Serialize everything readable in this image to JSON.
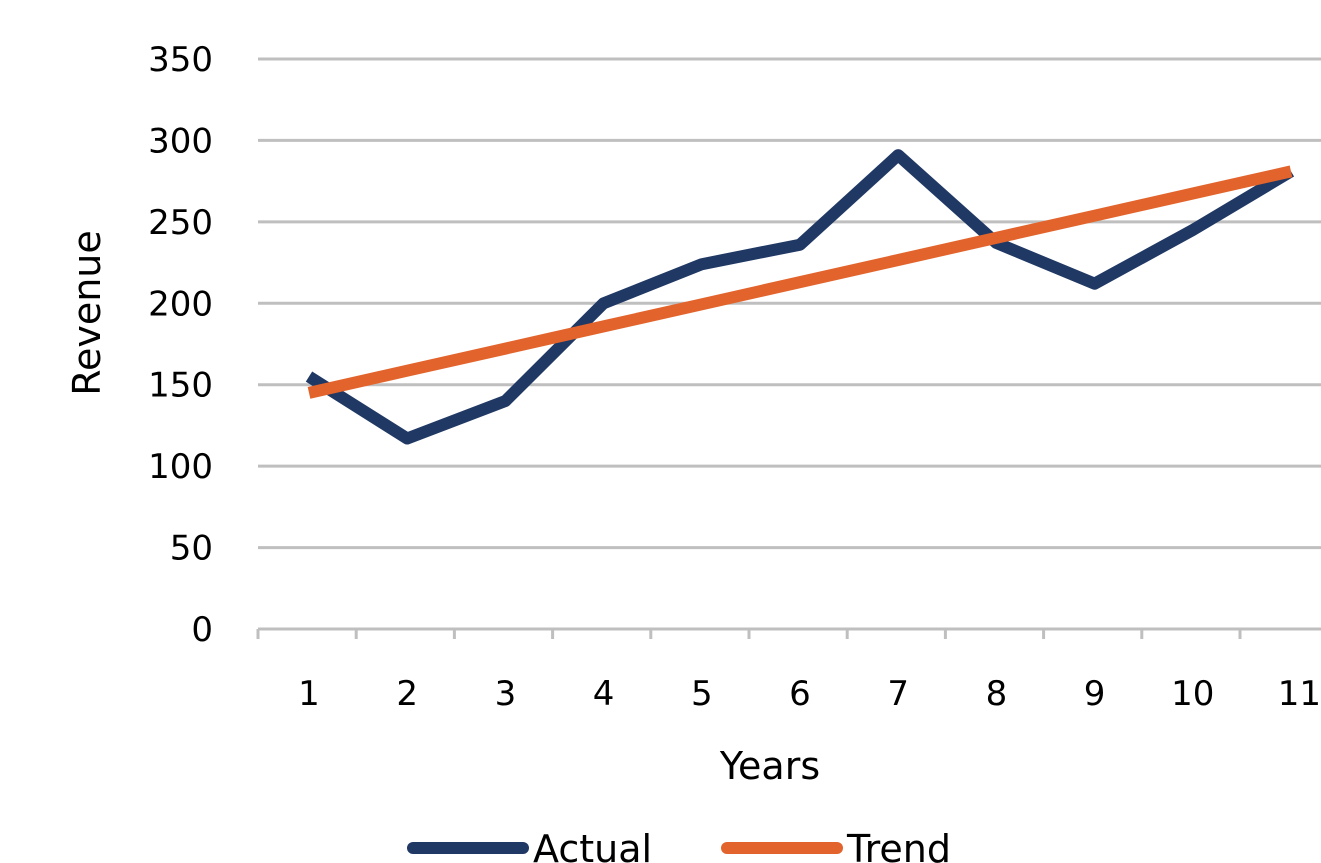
{
  "chart_data": {
    "type": "line",
    "title": "",
    "xlabel": "Years",
    "ylabel": "Revenue",
    "categories": [
      "1",
      "2",
      "3",
      "4",
      "5",
      "6",
      "7",
      "8",
      "9",
      "10",
      "11"
    ],
    "yticks": [
      "0",
      "50",
      "100",
      "150",
      "200",
      "250",
      "300",
      "350"
    ],
    "ylim": [
      0,
      350
    ],
    "grid": true,
    "legend_position": "bottom",
    "series": [
      {
        "name": "Actual",
        "color": "#203864",
        "values": [
          155,
          117,
          140,
          200,
          224,
          236,
          291,
          237,
          212,
          245,
          281
        ]
      },
      {
        "name": "Trend",
        "color": "#E2642C",
        "values": [
          145,
          158.6,
          172.2,
          185.8,
          199.4,
          213,
          226.6,
          240.2,
          253.8,
          267.4,
          281
        ]
      }
    ]
  }
}
